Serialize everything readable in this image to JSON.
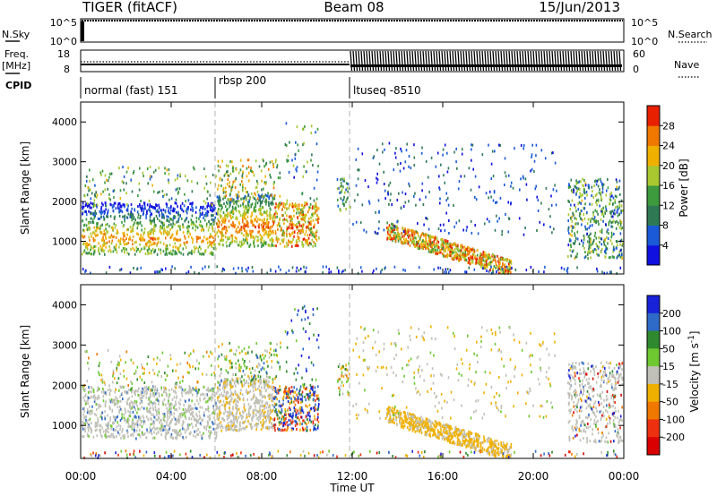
{
  "header": {
    "radar": "TIGER (fitACF)",
    "beam": "Beam 08",
    "date": "15/Jun/2013"
  },
  "strips": {
    "nsky": {
      "label": "N.Sky",
      "ticks": [
        "10^5",
        "10^0"
      ],
      "right_label": "N.Search",
      "right_ticks": [
        "10^5",
        "10^0"
      ]
    },
    "freq": {
      "label_top": "Freq.",
      "label_bottom": "[MHz]",
      "ticks": [
        "18",
        "8"
      ],
      "right_label": "Nave",
      "right_ticks": [
        "60",
        "0"
      ]
    },
    "cpid": {
      "label": "CPID",
      "segments": [
        "normal (fast) 151",
        "rbsp 200",
        "ltuseq -8510"
      ]
    }
  },
  "chart_data": [
    {
      "type": "heatmap",
      "name": "power-panel",
      "ylabel": "Slant Range [km]",
      "x_ticks": [
        "00:00",
        "04:00",
        "08:00",
        "12:00",
        "16:00",
        "20:00",
        "00:00"
      ],
      "y_ticks": [
        1000,
        2000,
        3000,
        4000
      ],
      "ylim": [
        180,
        4500
      ],
      "xlim_hours": [
        0,
        24
      ],
      "colorbar": {
        "label": "Power [dB]",
        "ticks": [
          4,
          8,
          12,
          16,
          20,
          24,
          28
        ],
        "colors": [
          "#1010e0",
          "#1a5ad8",
          "#2f7a55",
          "#3d9a3d",
          "#a8c830",
          "#f0b000",
          "#f07800",
          "#e82000"
        ]
      }
    },
    {
      "type": "heatmap",
      "name": "velocity-panel",
      "ylabel": "Slant Range [km]",
      "xlabel": "Time UT",
      "x_ticks": [
        "00:00",
        "04:00",
        "08:00",
        "12:00",
        "16:00",
        "20:00",
        "00:00"
      ],
      "y_ticks": [
        1000,
        2000,
        3000,
        4000
      ],
      "ylim": [
        180,
        4500
      ],
      "xlim_hours": [
        0,
        24
      ],
      "colorbar": {
        "label_main": "Velocity [m s",
        "label_exp": "-1",
        "label_close": "]",
        "ticks": [
          200,
          100,
          50,
          15,
          -15,
          -50,
          -100,
          -200
        ],
        "colors": [
          "#1822d8",
          "#2e6ac8",
          "#2f8a2f",
          "#6ec830",
          "#c0c0b8",
          "#f0b000",
          "#f07800",
          "#ee3010",
          "#d80000"
        ]
      }
    }
  ]
}
